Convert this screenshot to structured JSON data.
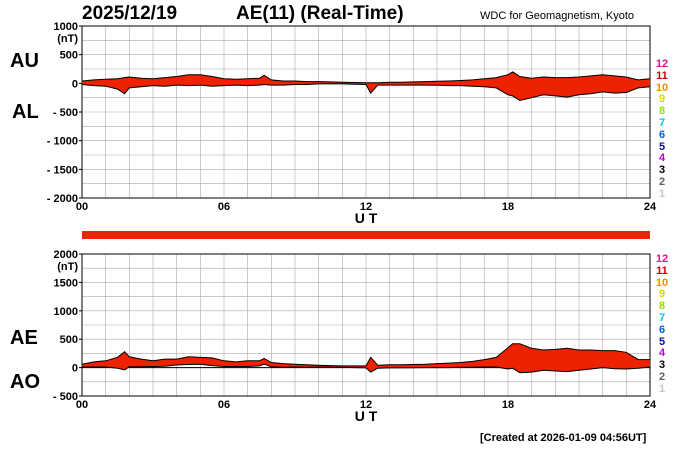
{
  "header": {
    "date": "2025/12/19",
    "title": "AE(11) (Real-Time)",
    "source": "WDC for Geomagnetism, Kyoto",
    "created": "[Created at 2026-01-09 04:56UT]"
  },
  "labels": {
    "au": "AU",
    "al": "AL",
    "ae": "AE",
    "ao": "AO"
  },
  "stations": {
    "items": [
      "12",
      "11",
      "10",
      "9",
      "8",
      "7",
      "6",
      "5",
      "4",
      "3",
      "2",
      "1"
    ],
    "colors": [
      "#e0148c",
      "#d40000",
      "#f09000",
      "#d8d800",
      "#90e000",
      "#00c8d8",
      "#0060e0",
      "#1010a0",
      "#c000d0",
      "#000000",
      "#606060",
      "#c8c8c8"
    ]
  },
  "colors": {
    "fill": "#ee2200",
    "outline": "#000000",
    "grid": "#aaaaaa",
    "status_bar": "#ee2200"
  },
  "chart_data": [
    {
      "type": "area",
      "panel": "AU/AL",
      "xlabel": "U T",
      "xlim": [
        0,
        24
      ],
      "xticks": [
        "00",
        "06",
        "12",
        "18",
        "24"
      ],
      "ylim": [
        -2000,
        1000
      ],
      "yticks": [
        1000,
        500,
        0,
        -500,
        -1000,
        -1500,
        -2000
      ],
      "yunit": "(nT)",
      "grid": true,
      "x": [
        0,
        0.5,
        1,
        1.5,
        1.8,
        2,
        2.5,
        3,
        3.5,
        4,
        4.5,
        5,
        5.5,
        6,
        6.5,
        7,
        7.5,
        7.7,
        8,
        8.5,
        9,
        9.5,
        10,
        10.5,
        11,
        11.5,
        12,
        12.2,
        12.5,
        13,
        13.5,
        14,
        14.5,
        15,
        15.5,
        16,
        16.5,
        17,
        17.5,
        18,
        18.2,
        18.5,
        19,
        19.5,
        20,
        20.5,
        21,
        21.5,
        22,
        22.5,
        23,
        23.5,
        24
      ],
      "series": [
        {
          "name": "AU",
          "values": [
            40,
            60,
            70,
            80,
            100,
            110,
            90,
            80,
            100,
            120,
            150,
            150,
            120,
            80,
            70,
            80,
            90,
            140,
            60,
            40,
            40,
            30,
            30,
            25,
            20,
            15,
            10,
            10,
            10,
            20,
            20,
            25,
            30,
            35,
            40,
            50,
            60,
            80,
            100,
            150,
            200,
            120,
            90,
            110,
            100,
            100,
            110,
            130,
            150,
            130,
            110,
            60,
            80
          ]
        },
        {
          "name": "AL",
          "values": [
            -20,
            -40,
            -50,
            -100,
            -180,
            -80,
            -60,
            -40,
            -50,
            -30,
            -40,
            -30,
            -50,
            -40,
            -30,
            -40,
            -30,
            -20,
            -30,
            -30,
            -20,
            -20,
            -10,
            -10,
            -10,
            -15,
            -20,
            -170,
            -30,
            -30,
            -30,
            -30,
            -30,
            -35,
            -40,
            -40,
            -50,
            -60,
            -80,
            -200,
            -220,
            -300,
            -250,
            -200,
            -220,
            -240,
            -200,
            -180,
            -150,
            -170,
            -160,
            -80,
            -60
          ]
        }
      ]
    },
    {
      "type": "area",
      "panel": "AE/AO",
      "xlabel": "U T",
      "xlim": [
        0,
        24
      ],
      "xticks": [
        "00",
        "06",
        "12",
        "18",
        "24"
      ],
      "ylim": [
        -500,
        2000
      ],
      "yticks": [
        2000,
        1500,
        1000,
        500,
        0,
        -500
      ],
      "yunit": "(nT)",
      "grid": true,
      "x": [
        0,
        0.5,
        1,
        1.5,
        1.8,
        2,
        2.5,
        3,
        3.5,
        4,
        4.5,
        5,
        5.5,
        6,
        6.5,
        7,
        7.5,
        7.7,
        8,
        8.5,
        9,
        9.5,
        10,
        10.5,
        11,
        11.5,
        12,
        12.2,
        12.5,
        13,
        13.5,
        14,
        14.5,
        15,
        15.5,
        16,
        16.5,
        17,
        17.5,
        18,
        18.2,
        18.5,
        19,
        19.5,
        20,
        20.5,
        21,
        21.5,
        22,
        22.5,
        23,
        23.5,
        24
      ],
      "series": [
        {
          "name": "AE",
          "values": [
            60,
            100,
            120,
            180,
            280,
            190,
            150,
            120,
            150,
            150,
            190,
            180,
            170,
            120,
            100,
            120,
            120,
            160,
            90,
            70,
            60,
            50,
            40,
            35,
            30,
            30,
            30,
            180,
            40,
            50,
            50,
            55,
            60,
            70,
            80,
            90,
            110,
            140,
            180,
            350,
            420,
            420,
            340,
            310,
            320,
            340,
            310,
            310,
            300,
            300,
            270,
            140,
            140
          ]
        },
        {
          "name": "AO",
          "values": [
            10,
            10,
            10,
            -10,
            -40,
            15,
            15,
            20,
            25,
            45,
            55,
            60,
            35,
            20,
            20,
            20,
            30,
            60,
            15,
            5,
            10,
            5,
            10,
            8,
            5,
            0,
            -5,
            -80,
            -10,
            -5,
            -5,
            -3,
            0,
            0,
            0,
            5,
            5,
            10,
            10,
            -25,
            -10,
            -90,
            -80,
            -45,
            -60,
            -70,
            -45,
            -25,
            0,
            -20,
            -25,
            -10,
            10
          ]
        }
      ]
    }
  ]
}
